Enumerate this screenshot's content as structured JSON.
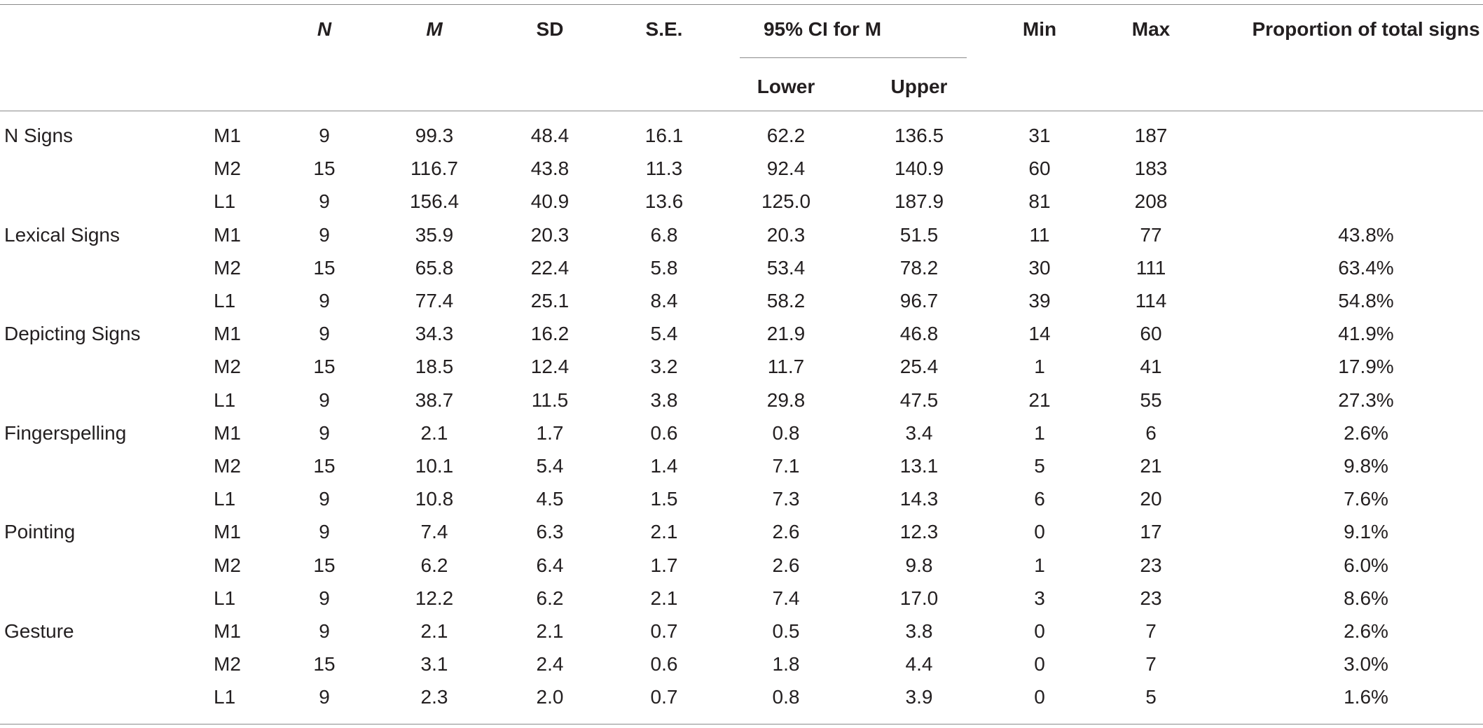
{
  "headers": {
    "n": "N",
    "m": "M",
    "sd": "SD",
    "se": "S.E.",
    "ci": "95% CI for M",
    "lower": "Lower",
    "upper": "Upper",
    "min": "Min",
    "max": "Max",
    "prop": "Proportion of total signs"
  },
  "rows": [
    {
      "cat": "N Signs",
      "group": "M1",
      "n": "9",
      "m": "99.3",
      "sd": "48.4",
      "se": "16.1",
      "lower": "62.2",
      "upper": "136.5",
      "min": "31",
      "max": "187",
      "prop": ""
    },
    {
      "cat": "",
      "group": "M2",
      "n": "15",
      "m": "116.7",
      "sd": "43.8",
      "se": "11.3",
      "lower": "92.4",
      "upper": "140.9",
      "min": "60",
      "max": "183",
      "prop": ""
    },
    {
      "cat": "",
      "group": "L1",
      "n": "9",
      "m": "156.4",
      "sd": "40.9",
      "se": "13.6",
      "lower": "125.0",
      "upper": "187.9",
      "min": "81",
      "max": "208",
      "prop": ""
    },
    {
      "cat": "Lexical Signs",
      "group": "M1",
      "n": "9",
      "m": "35.9",
      "sd": "20.3",
      "se": "6.8",
      "lower": "20.3",
      "upper": "51.5",
      "min": "11",
      "max": "77",
      "prop": "43.8%"
    },
    {
      "cat": "",
      "group": "M2",
      "n": "15",
      "m": "65.8",
      "sd": "22.4",
      "se": "5.8",
      "lower": "53.4",
      "upper": "78.2",
      "min": "30",
      "max": "111",
      "prop": "63.4%"
    },
    {
      "cat": "",
      "group": "L1",
      "n": "9",
      "m": "77.4",
      "sd": "25.1",
      "se": "8.4",
      "lower": "58.2",
      "upper": "96.7",
      "min": "39",
      "max": "114",
      "prop": "54.8%"
    },
    {
      "cat": "Depicting Signs",
      "group": "M1",
      "n": "9",
      "m": "34.3",
      "sd": "16.2",
      "se": "5.4",
      "lower": "21.9",
      "upper": "46.8",
      "min": "14",
      "max": "60",
      "prop": "41.9%"
    },
    {
      "cat": "",
      "group": "M2",
      "n": "15",
      "m": "18.5",
      "sd": "12.4",
      "se": "3.2",
      "lower": "11.7",
      "upper": "25.4",
      "min": "1",
      "max": "41",
      "prop": "17.9%"
    },
    {
      "cat": "",
      "group": "L1",
      "n": "9",
      "m": "38.7",
      "sd": "11.5",
      "se": "3.8",
      "lower": "29.8",
      "upper": "47.5",
      "min": "21",
      "max": "55",
      "prop": "27.3%"
    },
    {
      "cat": "Fingerspelling",
      "group": "M1",
      "n": "9",
      "m": "2.1",
      "sd": "1.7",
      "se": "0.6",
      "lower": "0.8",
      "upper": "3.4",
      "min": "1",
      "max": "6",
      "prop": "2.6%"
    },
    {
      "cat": "",
      "group": "M2",
      "n": "15",
      "m": "10.1",
      "sd": "5.4",
      "se": "1.4",
      "lower": "7.1",
      "upper": "13.1",
      "min": "5",
      "max": "21",
      "prop": "9.8%"
    },
    {
      "cat": "",
      "group": "L1",
      "n": "9",
      "m": "10.8",
      "sd": "4.5",
      "se": "1.5",
      "lower": "7.3",
      "upper": "14.3",
      "min": "6",
      "max": "20",
      "prop": "7.6%"
    },
    {
      "cat": "Pointing",
      "group": "M1",
      "n": "9",
      "m": "7.4",
      "sd": "6.3",
      "se": "2.1",
      "lower": "2.6",
      "upper": "12.3",
      "min": "0",
      "max": "17",
      "prop": "9.1%"
    },
    {
      "cat": "",
      "group": "M2",
      "n": "15",
      "m": "6.2",
      "sd": "6.4",
      "se": "1.7",
      "lower": "2.6",
      "upper": "9.8",
      "min": "1",
      "max": "23",
      "prop": "6.0%"
    },
    {
      "cat": "",
      "group": "L1",
      "n": "9",
      "m": "12.2",
      "sd": "6.2",
      "se": "2.1",
      "lower": "7.4",
      "upper": "17.0",
      "min": "3",
      "max": "23",
      "prop": "8.6%"
    },
    {
      "cat": "Gesture",
      "group": "M1",
      "n": "9",
      "m": "2.1",
      "sd": "2.1",
      "se": "0.7",
      "lower": "0.5",
      "upper": "3.8",
      "min": "0",
      "max": "7",
      "prop": "2.6%"
    },
    {
      "cat": "",
      "group": "M2",
      "n": "15",
      "m": "3.1",
      "sd": "2.4",
      "se": "0.6",
      "lower": "1.8",
      "upper": "4.4",
      "min": "0",
      "max": "7",
      "prop": "3.0%"
    },
    {
      "cat": "",
      "group": "L1",
      "n": "9",
      "m": "2.3",
      "sd": "2.0",
      "se": "0.7",
      "lower": "0.8",
      "upper": "3.9",
      "min": "0",
      "max": "5",
      "prop": "1.6%"
    }
  ]
}
